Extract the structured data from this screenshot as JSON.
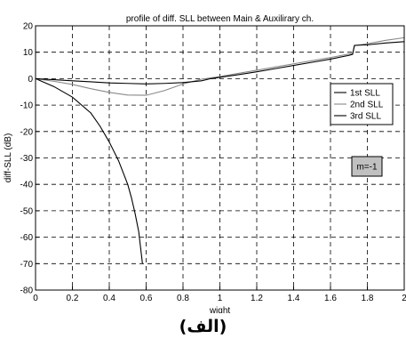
{
  "chart_data": {
    "type": "line",
    "title": "profile of diff. SLL between Main & Auxilirary ch.",
    "xlabel": "wight",
    "ylabel": "diff-SLL (dB)",
    "xlim": [
      0,
      2
    ],
    "ylim": [
      -80,
      20
    ],
    "xticks": [
      0,
      0.2,
      0.4,
      0.6,
      0.8,
      1,
      1.2,
      1.4,
      1.6,
      1.8,
      2
    ],
    "xtick_labels": [
      "0",
      "0.2",
      "0.4",
      "0.6",
      "0.8",
      "1",
      "1.2",
      "1.4",
      "1.6",
      "1.8",
      "2"
    ],
    "yticks": [
      -80,
      -70,
      -60,
      -50,
      -40,
      -30,
      -20,
      -10,
      0,
      10,
      20
    ],
    "ytick_labels": [
      "-80",
      "-70",
      "-60",
      "-50",
      "-40",
      "-30",
      "-20",
      "-10",
      "0",
      "10",
      "20"
    ],
    "grid": true,
    "legend_position": "right",
    "annotation": "m=-1",
    "series": [
      {
        "name": "1st SLL",
        "color": "#000000",
        "x": [
          0,
          0.1,
          0.2,
          0.3,
          0.35,
          0.4,
          0.45,
          0.5,
          0.52,
          0.54,
          0.56,
          0.57,
          0.58
        ],
        "y": [
          0,
          -3,
          -7,
          -13,
          -18,
          -24,
          -31,
          -40,
          -45,
          -51,
          -58,
          -64,
          -70
        ]
      },
      {
        "name": "2nd SLL",
        "color": "#888888",
        "x": [
          0,
          0.1,
          0.2,
          0.3,
          0.4,
          0.5,
          0.6,
          0.7,
          0.8,
          0.9,
          1.0,
          1.1,
          1.2,
          1.3,
          1.4,
          1.5,
          1.6,
          1.7,
          1.72,
          1.73,
          1.8,
          1.9,
          2.0
        ],
        "y": [
          0,
          -1,
          -2.2,
          -3.8,
          -5.2,
          -6.2,
          -6.3,
          -4.5,
          -2,
          -0.2,
          0.8,
          2,
          3.2,
          4.4,
          5.6,
          6.8,
          8,
          9.3,
          9.6,
          12.5,
          13.2,
          14.5,
          15.5
        ]
      },
      {
        "name": "3rd SLL",
        "color": "#000000",
        "x": [
          0,
          0.1,
          0.2,
          0.3,
          0.4,
          0.5,
          0.6,
          0.7,
          0.8,
          0.9,
          0.95,
          1.0,
          1.1,
          1.2,
          1.3,
          1.4,
          1.5,
          1.6,
          1.7,
          1.72,
          1.73,
          1.8,
          1.9,
          2.0
        ],
        "y": [
          0,
          -0.4,
          -0.8,
          -1.2,
          -1.6,
          -1.8,
          -2,
          -1.8,
          -1.5,
          -0.8,
          0,
          0.5,
          1.5,
          2.6,
          3.8,
          5,
          6.2,
          7.4,
          8.8,
          9.2,
          12.6,
          12.8,
          13.5,
          14
        ]
      }
    ]
  },
  "caption": "(الف)"
}
